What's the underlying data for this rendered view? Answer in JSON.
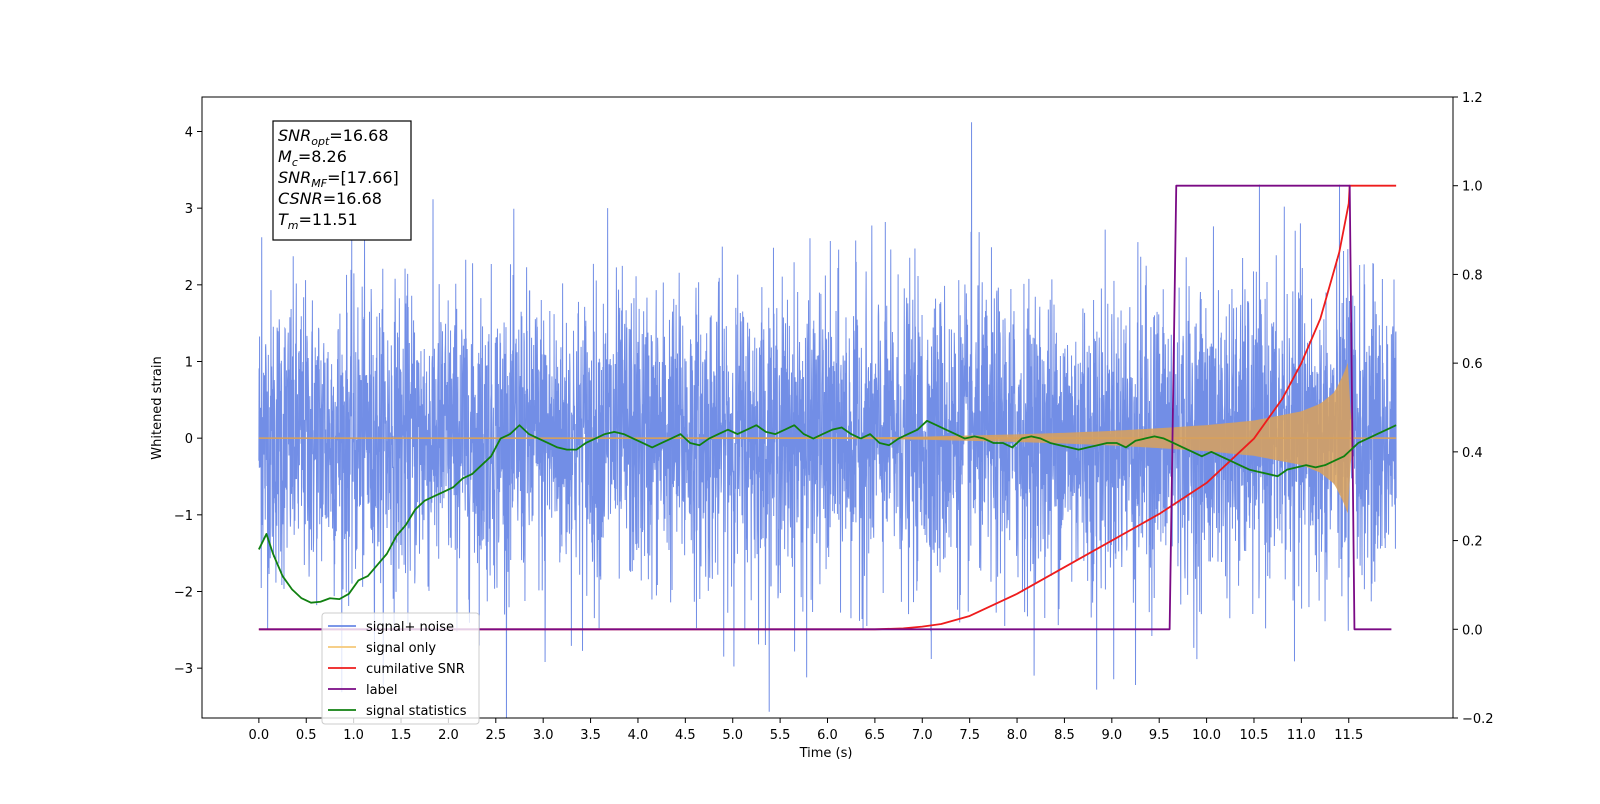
{
  "chart_data": {
    "type": "line",
    "xlabel": "Time (s)",
    "ylabel": "Whitened strain",
    "xlim": [
      -0.6,
      12.6
    ],
    "ylim_left": [
      -3.65,
      4.45
    ],
    "ylim_right": [
      -0.2,
      1.2
    ],
    "x_ticks": [
      "0.0",
      "0.5",
      "1.0",
      "1.5",
      "2.0",
      "2.5",
      "3.0",
      "3.5",
      "4.0",
      "4.5",
      "5.0",
      "5.5",
      "6.0",
      "6.5",
      "7.0",
      "7.5",
      "8.0",
      "8.5",
      "9.0",
      "9.5",
      "10.0",
      "10.5",
      "11.0",
      "11.5"
    ],
    "y_ticks_left": [
      "−3",
      "−2",
      "−1",
      "0",
      "1",
      "2",
      "3",
      "4"
    ],
    "y_ticks_right": [
      "−0.2",
      "0.0",
      "0.2",
      "0.4",
      "0.6",
      "0.8",
      "1.0",
      "1.2"
    ],
    "grid": false,
    "legend_position": "lower-left",
    "annotation": {
      "lines": [
        {
          "base": "SNR",
          "sub": "opt",
          "value": "=16.68"
        },
        {
          "base": "M",
          "sub": "c",
          "value": "=8.26"
        },
        {
          "base": "SNR",
          "sub": "MF",
          "value": "=[17.66]"
        },
        {
          "base": "CSNR",
          "sub": "",
          "value": "=16.68"
        },
        {
          "base": "T",
          "sub": "m",
          "value": "=11.51"
        }
      ]
    },
    "series": [
      {
        "name": "signal+ noise",
        "axis": "left",
        "color": "#6a88e5",
        "noise_sigma": 1.0,
        "x_start": 0.0,
        "x_end": 12.0,
        "peak_points": [
          [
            0.03,
            2.62
          ],
          [
            7.52,
            4.12
          ],
          [
            3.68,
            3.0
          ],
          [
            10.82,
            3.02
          ],
          [
            8.84,
            -3.28
          ],
          [
            9.25,
            -3.22
          ],
          [
            5.78,
            -3.12
          ],
          [
            3.02,
            -2.92
          ]
        ]
      },
      {
        "name": "signal only",
        "axis": "left",
        "color": "#d9a15a",
        "envelope": [
          [
            0,
            0.005
          ],
          [
            6.5,
            0.012
          ],
          [
            7.0,
            0.02
          ],
          [
            7.5,
            0.035
          ],
          [
            8.0,
            0.05
          ],
          [
            8.5,
            0.07
          ],
          [
            9.0,
            0.095
          ],
          [
            9.5,
            0.13
          ],
          [
            10.0,
            0.17
          ],
          [
            10.5,
            0.23
          ],
          [
            11.0,
            0.35
          ],
          [
            11.2,
            0.45
          ],
          [
            11.35,
            0.6
          ],
          [
            11.45,
            0.85
          ],
          [
            11.5,
            1.02
          ],
          [
            11.53,
            0.0
          ],
          [
            12.0,
            0.0
          ]
        ]
      },
      {
        "name": "cumilative SNR",
        "axis": "right",
        "color": "#ee1c1c",
        "x": [
          0,
          6.5,
          6.8,
          7.0,
          7.2,
          7.5,
          8.0,
          8.5,
          9.0,
          9.5,
          10.0,
          10.5,
          10.8,
          11.0,
          11.2,
          11.4,
          11.5,
          11.51,
          12.0
        ],
        "values": [
          0,
          0,
          0.002,
          0.006,
          0.012,
          0.03,
          0.08,
          0.14,
          0.2,
          0.26,
          0.33,
          0.43,
          0.52,
          0.6,
          0.7,
          0.85,
          0.96,
          1.0,
          1.0
        ]
      },
      {
        "name": "label",
        "axis": "right",
        "color": "#7a0a85",
        "x": [
          0,
          9.61,
          9.68,
          11.51,
          11.56,
          11.95
        ],
        "values": [
          0,
          0,
          1.0,
          1.0,
          0,
          0
        ]
      },
      {
        "name": "signal statistics",
        "axis": "right",
        "color": "#108010",
        "x": [
          0.0,
          0.08,
          0.15,
          0.25,
          0.35,
          0.45,
          0.55,
          0.65,
          0.75,
          0.85,
          0.95,
          1.05,
          1.15,
          1.25,
          1.35,
          1.45,
          1.55,
          1.65,
          1.75,
          1.85,
          1.95,
          2.05,
          2.15,
          2.25,
          2.35,
          2.45,
          2.55,
          2.65,
          2.75,
          2.85,
          2.95,
          3.05,
          3.15,
          3.25,
          3.35,
          3.45,
          3.55,
          3.65,
          3.75,
          3.85,
          3.95,
          4.05,
          4.15,
          4.25,
          4.35,
          4.45,
          4.55,
          4.65,
          4.75,
          4.85,
          4.95,
          5.05,
          5.15,
          5.25,
          5.35,
          5.45,
          5.55,
          5.65,
          5.75,
          5.85,
          5.95,
          6.05,
          6.15,
          6.25,
          6.35,
          6.45,
          6.55,
          6.65,
          6.75,
          6.85,
          6.95,
          7.05,
          7.15,
          7.25,
          7.35,
          7.45,
          7.55,
          7.65,
          7.75,
          7.85,
          7.95,
          8.05,
          8.15,
          8.25,
          8.35,
          8.45,
          8.55,
          8.65,
          8.75,
          8.85,
          8.95,
          9.05,
          9.15,
          9.25,
          9.35,
          9.45,
          9.55,
          9.65,
          9.75,
          9.85,
          9.95,
          10.05,
          10.15,
          10.25,
          10.35,
          10.45,
          10.55,
          10.65,
          10.75,
          10.85,
          10.95,
          11.05,
          11.15,
          11.25,
          11.35,
          11.45,
          11.5,
          11.55,
          11.6,
          11.7,
          11.8,
          11.9,
          12.0
        ],
        "values": [
          0.18,
          0.215,
          0.17,
          0.12,
          0.09,
          0.07,
          0.06,
          0.062,
          0.07,
          0.068,
          0.08,
          0.11,
          0.12,
          0.145,
          0.17,
          0.21,
          0.235,
          0.27,
          0.29,
          0.3,
          0.31,
          0.32,
          0.34,
          0.35,
          0.37,
          0.39,
          0.43,
          0.44,
          0.46,
          0.44,
          0.43,
          0.42,
          0.41,
          0.405,
          0.405,
          0.42,
          0.43,
          0.44,
          0.445,
          0.44,
          0.43,
          0.42,
          0.41,
          0.42,
          0.43,
          0.44,
          0.42,
          0.415,
          0.43,
          0.44,
          0.45,
          0.44,
          0.45,
          0.46,
          0.445,
          0.44,
          0.45,
          0.46,
          0.44,
          0.43,
          0.44,
          0.45,
          0.455,
          0.44,
          0.43,
          0.44,
          0.42,
          0.415,
          0.43,
          0.44,
          0.45,
          0.47,
          0.46,
          0.45,
          0.44,
          0.43,
          0.435,
          0.43,
          0.42,
          0.42,
          0.41,
          0.43,
          0.435,
          0.43,
          0.42,
          0.415,
          0.41,
          0.405,
          0.41,
          0.415,
          0.42,
          0.42,
          0.41,
          0.425,
          0.43,
          0.435,
          0.43,
          0.42,
          0.41,
          0.4,
          0.39,
          0.4,
          0.39,
          0.38,
          0.37,
          0.36,
          0.355,
          0.35,
          0.345,
          0.36,
          0.365,
          0.37,
          0.365,
          0.37,
          0.38,
          0.39,
          0.4,
          0.41,
          0.42,
          0.43,
          0.44,
          0.45,
          0.46
        ]
      }
    ],
    "legend": [
      {
        "label": "signal+ noise",
        "color": "#6a88e5"
      },
      {
        "label": "signal only",
        "color": "#f5c878"
      },
      {
        "label": "cumilative SNR",
        "color": "#ee1c1c"
      },
      {
        "label": "label",
        "color": "#7a0a85"
      },
      {
        "label": "signal statistics",
        "color": "#108010"
      }
    ]
  }
}
